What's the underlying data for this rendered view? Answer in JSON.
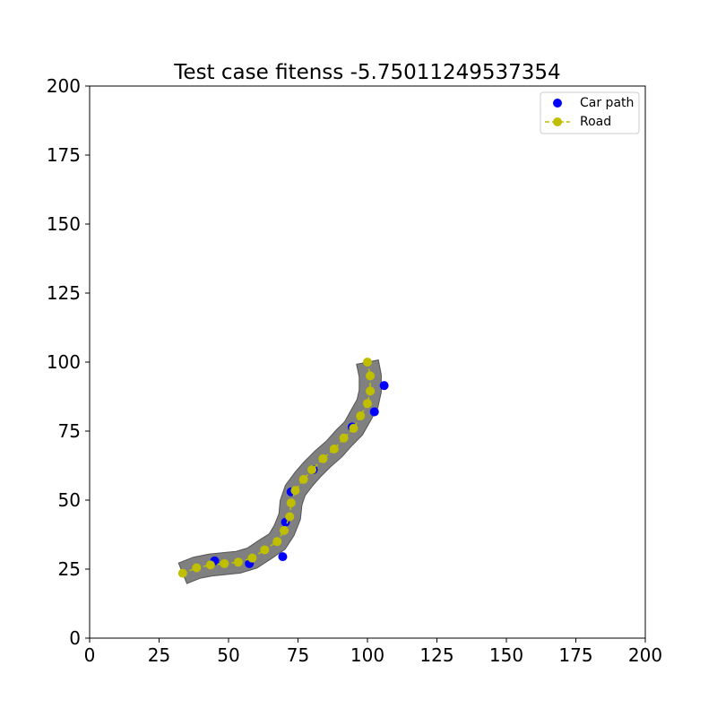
{
  "chart_data": {
    "type": "scatter",
    "title": "Test case fitenss -5.75011249537354",
    "xlim": [
      0,
      200
    ],
    "ylim": [
      0,
      200
    ],
    "x_ticks": [
      0,
      25,
      50,
      75,
      100,
      125,
      150,
      175,
      200
    ],
    "y_ticks": [
      0,
      25,
      50,
      75,
      100,
      125,
      150,
      175,
      200
    ],
    "grid": false,
    "legend_position": "top-right",
    "road_width": 8,
    "colors": {
      "car_path": "#0000ff",
      "road": "#bfbf00",
      "road_area": "#808080"
    },
    "series": [
      {
        "name": "Car path",
        "marker": "circle",
        "x": [
          45,
          57.5,
          69.5,
          70.5,
          72.5,
          80.5,
          94.5,
          102.5,
          106
        ],
        "y": [
          28,
          27,
          29.5,
          42,
          53,
          61,
          76.5,
          82,
          91.5
        ]
      },
      {
        "name": "Road",
        "marker": "circle-dashed-line",
        "x": [
          33.5,
          38.5,
          43.5,
          48.5,
          53.5,
          58.5,
          63,
          67.5,
          70,
          72,
          72.5,
          74,
          77,
          80,
          84,
          88,
          91.5,
          95,
          97.5,
          100,
          101,
          101,
          100
        ],
        "y": [
          23.5,
          25.5,
          26.5,
          27,
          27.5,
          29,
          32,
          35,
          39,
          44,
          49,
          53.5,
          57.5,
          61,
          65,
          68.5,
          72.5,
          76,
          80.5,
          85,
          89.5,
          95,
          100
        ]
      }
    ]
  }
}
